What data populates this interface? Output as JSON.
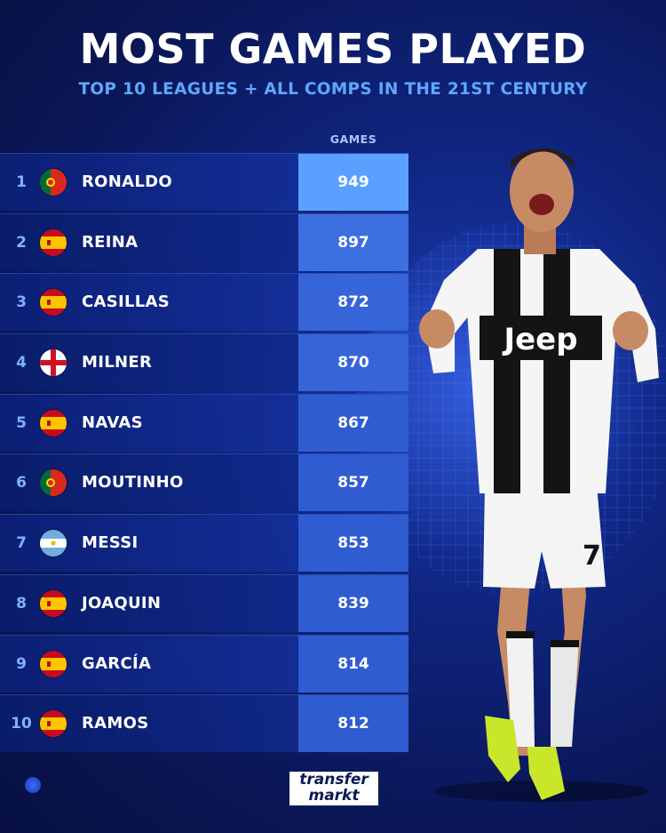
{
  "header": {
    "title": "MOST GAMES PLAYED",
    "subtitle": "TOP 10 LEAGUES + ALL COMPS IN THE 21ST CENTURY",
    "column_label": "GAMES"
  },
  "rows": [
    {
      "rank": "1",
      "name": "RONALDO",
      "games": "949",
      "flag": "portugal-flag-icon"
    },
    {
      "rank": "2",
      "name": "REINA",
      "games": "897",
      "flag": "spain-flag-icon"
    },
    {
      "rank": "3",
      "name": "CASILLAS",
      "games": "872",
      "flag": "spain-flag-icon"
    },
    {
      "rank": "4",
      "name": "MILNER",
      "games": "870",
      "flag": "england-flag-icon"
    },
    {
      "rank": "5",
      "name": "NAVAS",
      "games": "867",
      "flag": "spain-flag-icon"
    },
    {
      "rank": "6",
      "name": "MOUTINHO",
      "games": "857",
      "flag": "portugal-flag-icon"
    },
    {
      "rank": "7",
      "name": "MESSI",
      "games": "853",
      "flag": "argentina-flag-icon"
    },
    {
      "rank": "8",
      "name": "JOAQUIN",
      "games": "839",
      "flag": "spain-flag-icon"
    },
    {
      "rank": "9",
      "name": "GARCÍA",
      "games": "814",
      "flag": "spain-flag-icon"
    },
    {
      "rank": "10",
      "name": "RAMOS",
      "games": "812",
      "flag": "spain-flag-icon"
    }
  ],
  "player": {
    "jersey_sponsor": "Jeep",
    "shorts_number": "7"
  },
  "logo": {
    "line1": "transfer",
    "line2": "markt"
  },
  "colors": {
    "background": "#0a1656",
    "accent_blue": "#5fa6ff",
    "value_cell": "#2f5cd0",
    "value_cell_top": "#5aa0ff"
  }
}
